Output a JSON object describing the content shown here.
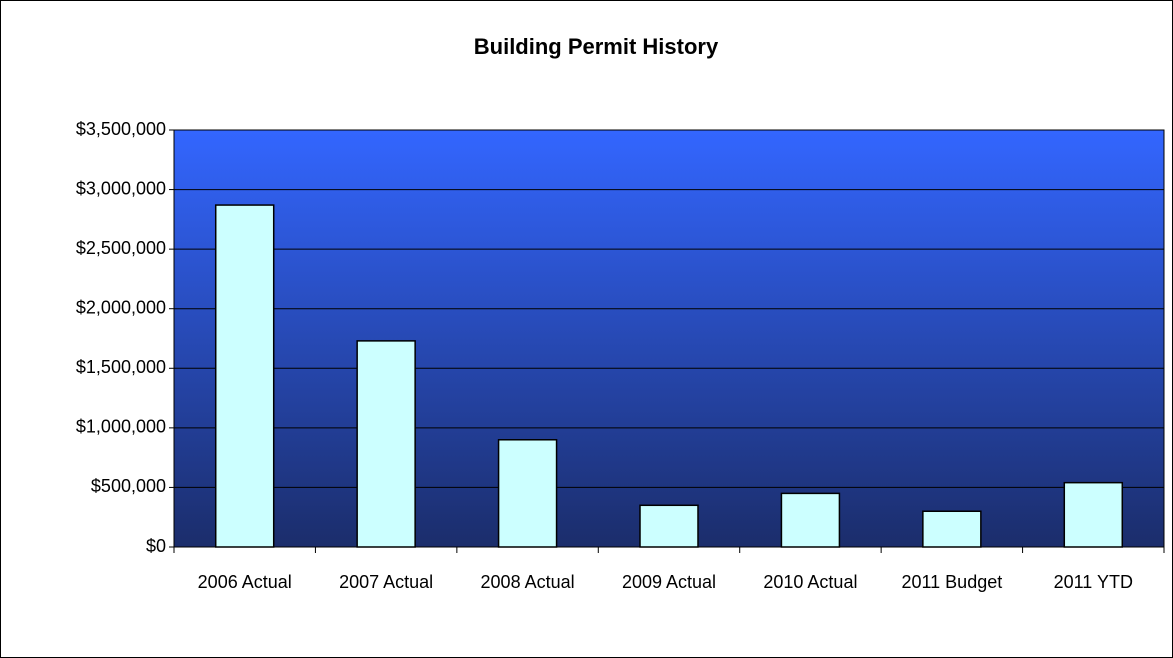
{
  "chart_data": {
    "type": "bar",
    "title": "Building Permit History",
    "categories": [
      "2006 Actual",
      "2007 Actual",
      "2008 Actual",
      "2009 Actual",
      "2010 Actual",
      "2011 Budget",
      "2011 YTD"
    ],
    "values": [
      2870000,
      1730000,
      900000,
      350000,
      450000,
      300000,
      540000
    ],
    "color": "#ccffff",
    "ylim": [
      0,
      3500000
    ],
    "yticks": [
      {
        "value": 0,
        "label": "$0"
      },
      {
        "value": 500000,
        "label": "$500,000"
      },
      {
        "value": 1000000,
        "label": "$1,000,000"
      },
      {
        "value": 1500000,
        "label": "$1,500,000"
      },
      {
        "value": 2000000,
        "label": "$2,000,000"
      },
      {
        "value": 2500000,
        "label": "$2,500,000"
      },
      {
        "value": 3000000,
        "label": "$3,000,000"
      },
      {
        "value": 3500000,
        "label": "$3,500,000"
      }
    ],
    "grid": true
  }
}
